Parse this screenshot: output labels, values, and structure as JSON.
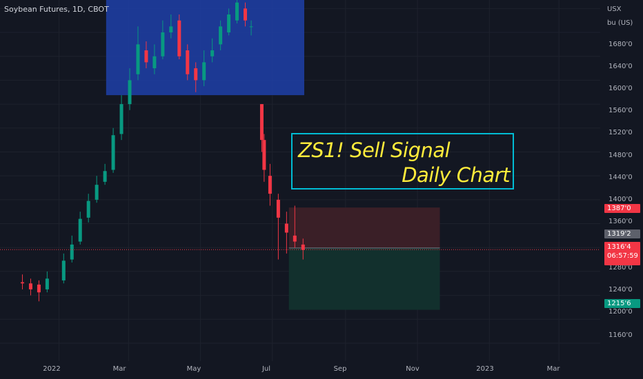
{
  "header": {
    "title": "Soybean Futures, 1D, CBOT"
  },
  "price_axis": {
    "unit_line1": "USX",
    "unit_line2": "bu (US)",
    "ticks": [
      "1680'0",
      "1640'0",
      "1600'0",
      "1560'0",
      "1520'0",
      "1480'0",
      "1440'0",
      "1400'0",
      "1360'0",
      "1280'0",
      "1240'0",
      "1200'0",
      "1160'0"
    ],
    "labels": {
      "target_high": "1387'0",
      "entry": "1319'2",
      "last_price": "1316'4",
      "countdown": "06:57:59",
      "target_low": "1215'6"
    }
  },
  "time_axis": {
    "ticks": [
      "2022",
      "Mar",
      "May",
      "Jul",
      "Sep",
      "Nov",
      "2023",
      "Mar"
    ]
  },
  "annotation": {
    "line1": "ZS1! Sell Signal",
    "line2": "Daily Chart"
  },
  "colors": {
    "background": "#131722",
    "up_candle": "#089981",
    "down_candle": "#f23645",
    "highlight_box": "#1e3fa8",
    "annotation_border": "#00bcd4",
    "annotation_text": "#ffeb3b",
    "stop_zone": "#3a1f27",
    "target_zone": "#12302d"
  },
  "chart_data": {
    "type": "candlestick",
    "title": "Soybean Futures, 1D, CBOT",
    "ylabel": "USX bu (US)",
    "ylim": [
      1130,
      1740
    ],
    "x": [
      "2021-12-01",
      "2021-12-08",
      "2021-12-15",
      "2021-12-22",
      "2022-01-05",
      "2022-01-12",
      "2022-01-19",
      "2022-01-26",
      "2022-02-02",
      "2022-02-09",
      "2022-02-16",
      "2022-02-23",
      "2022-03-02",
      "2022-03-09",
      "2022-03-16",
      "2022-03-23",
      "2022-03-30",
      "2022-04-06",
      "2022-04-13",
      "2022-04-20",
      "2022-04-27",
      "2022-05-04",
      "2022-05-11",
      "2022-05-18",
      "2022-05-25",
      "2022-06-01",
      "2022-06-08",
      "2022-06-13",
      "2022-06-22",
      "2022-06-24",
      "2022-06-29",
      "2022-07-06",
      "2022-07-13",
      "2022-07-20",
      "2022-07-27"
    ],
    "series": [
      {
        "open": [
          1262,
          1260,
          1258,
          1250,
          1265,
          1300,
          1330,
          1370,
          1400,
          1430,
          1450,
          1510,
          1560,
          1610,
          1650,
          1620,
          1640,
          1680,
          1700,
          1650,
          1620,
          1600,
          1640,
          1660,
          1680,
          1700,
          1720,
          1690,
          1560,
          1500,
          1440,
          1400,
          1360,
          1340,
          1325
        ],
        "close": [
          1260,
          1250,
          1245,
          1268,
          1298,
          1325,
          1368,
          1398,
          1425,
          1448,
          1508,
          1560,
          1600,
          1660,
          1630,
          1640,
          1680,
          1690,
          1640,
          1610,
          1600,
          1630,
          1650,
          1690,
          1710,
          1730,
          1700,
          1690,
          1500,
          1450,
          1410,
          1370,
          1345,
          1330,
          1316
        ],
        "high": [
          1275,
          1268,
          1265,
          1280,
          1310,
          1340,
          1380,
          1410,
          1440,
          1460,
          1520,
          1575,
          1620,
          1690,
          1665,
          1660,
          1700,
          1710,
          1710,
          1660,
          1630,
          1650,
          1670,
          1700,
          1720,
          1740,
          1730,
          1700,
          1560,
          1510,
          1460,
          1410,
          1380,
          1390,
          1335
        ],
        "low": [
          1250,
          1240,
          1230,
          1245,
          1260,
          1295,
          1325,
          1362,
          1395,
          1425,
          1445,
          1500,
          1550,
          1600,
          1620,
          1610,
          1635,
          1670,
          1635,
          1600,
          1580,
          1590,
          1630,
          1650,
          1675,
          1695,
          1690,
          1675,
          1480,
          1430,
          1390,
          1300,
          1310,
          1320,
          1300
        ]
      }
    ],
    "highlight_zone": {
      "price_range": [
        1575,
        1740
      ],
      "from": "2022-02-10",
      "to": "2022-07-28"
    },
    "position": {
      "entry": 1319.25,
      "stop": 1387.0,
      "target": 1215.75,
      "from": "2022-07-15",
      "to": "2022-11-20"
    },
    "last_price": 1316.5
  }
}
